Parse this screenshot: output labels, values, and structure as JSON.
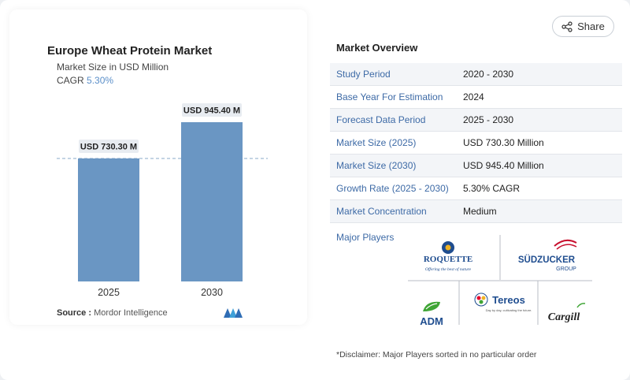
{
  "header": {
    "share_label": "Share"
  },
  "chart_card": {
    "title": "Europe Wheat Protein Market",
    "subtitle": "Market Size in USD Million",
    "cagr_label": "CAGR",
    "cagr_value": "5.30%",
    "source_label": "Source :",
    "source_value": "Mordor Intelligence"
  },
  "chart_data": {
    "type": "bar",
    "categories": [
      "2025",
      "2030"
    ],
    "values": [
      730.3,
      945.4
    ],
    "data_labels": [
      "USD 730.30 M",
      "USD 945.40 M"
    ],
    "title": "Europe Wheat Protein Market",
    "ylabel": "",
    "xlabel": "",
    "bar_color": "#6a96c3",
    "reference_line": "dashed at 2025 value"
  },
  "overview": {
    "title": "Market Overview",
    "rows": [
      {
        "key": "Study Period",
        "value": "2020 - 2030"
      },
      {
        "key": "Base Year For Estimation",
        "value": "2024"
      },
      {
        "key": "Forecast Data Period",
        "value": "2025 - 2030"
      },
      {
        "key": "Market Size (2025)",
        "value": "USD 730.30 Million"
      },
      {
        "key": "Market Size (2030)",
        "value": "USD 945.40 Million"
      },
      {
        "key": "Growth Rate (2025 - 2030)",
        "value": "5.30% CAGR"
      },
      {
        "key": "Market Concentration",
        "value": "Medium"
      }
    ],
    "major_players_label": "Major Players",
    "players": [
      "ROQUETTE",
      "SÜDZUCKER GROUP",
      "ADM",
      "Tereos",
      "Cargill"
    ],
    "roquette_tagline": "Offering the best of nature",
    "tereos_tagline": "Day by day, cultivating the future.",
    "disclaimer": "*Disclaimer: Major Players sorted in no particular order"
  }
}
